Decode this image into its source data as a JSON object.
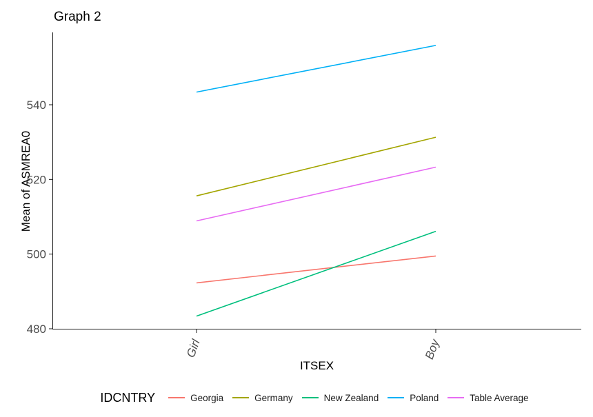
{
  "chart_data": {
    "type": "line",
    "title": "Graph 2",
    "xlabel": "ITSEX",
    "ylabel": "Mean of ASMREA0",
    "legend_title": "IDCNTRY",
    "legend_position": "bottom",
    "grid": false,
    "categories": [
      "Girl",
      "Boy"
    ],
    "yticks": [
      480,
      500,
      520,
      540
    ],
    "ylim": [
      478,
      558
    ],
    "axis_text_color": "#4d4d4d",
    "axis_line_color": "#1a1a1a",
    "series": [
      {
        "name": "Georgia",
        "color": "#F8766D",
        "values": [
          492.3,
          499.5
        ]
      },
      {
        "name": "Germany",
        "color": "#A3A500",
        "values": [
          515.6,
          531.3
        ]
      },
      {
        "name": "New Zealand",
        "color": "#00BF7D",
        "values": [
          483.4,
          506.1
        ]
      },
      {
        "name": "Poland",
        "color": "#00B0F6",
        "values": [
          543.4,
          555.9
        ]
      },
      {
        "name": "Table Average",
        "color": "#E76BF3",
        "values": [
          508.9,
          523.3
        ]
      }
    ]
  }
}
